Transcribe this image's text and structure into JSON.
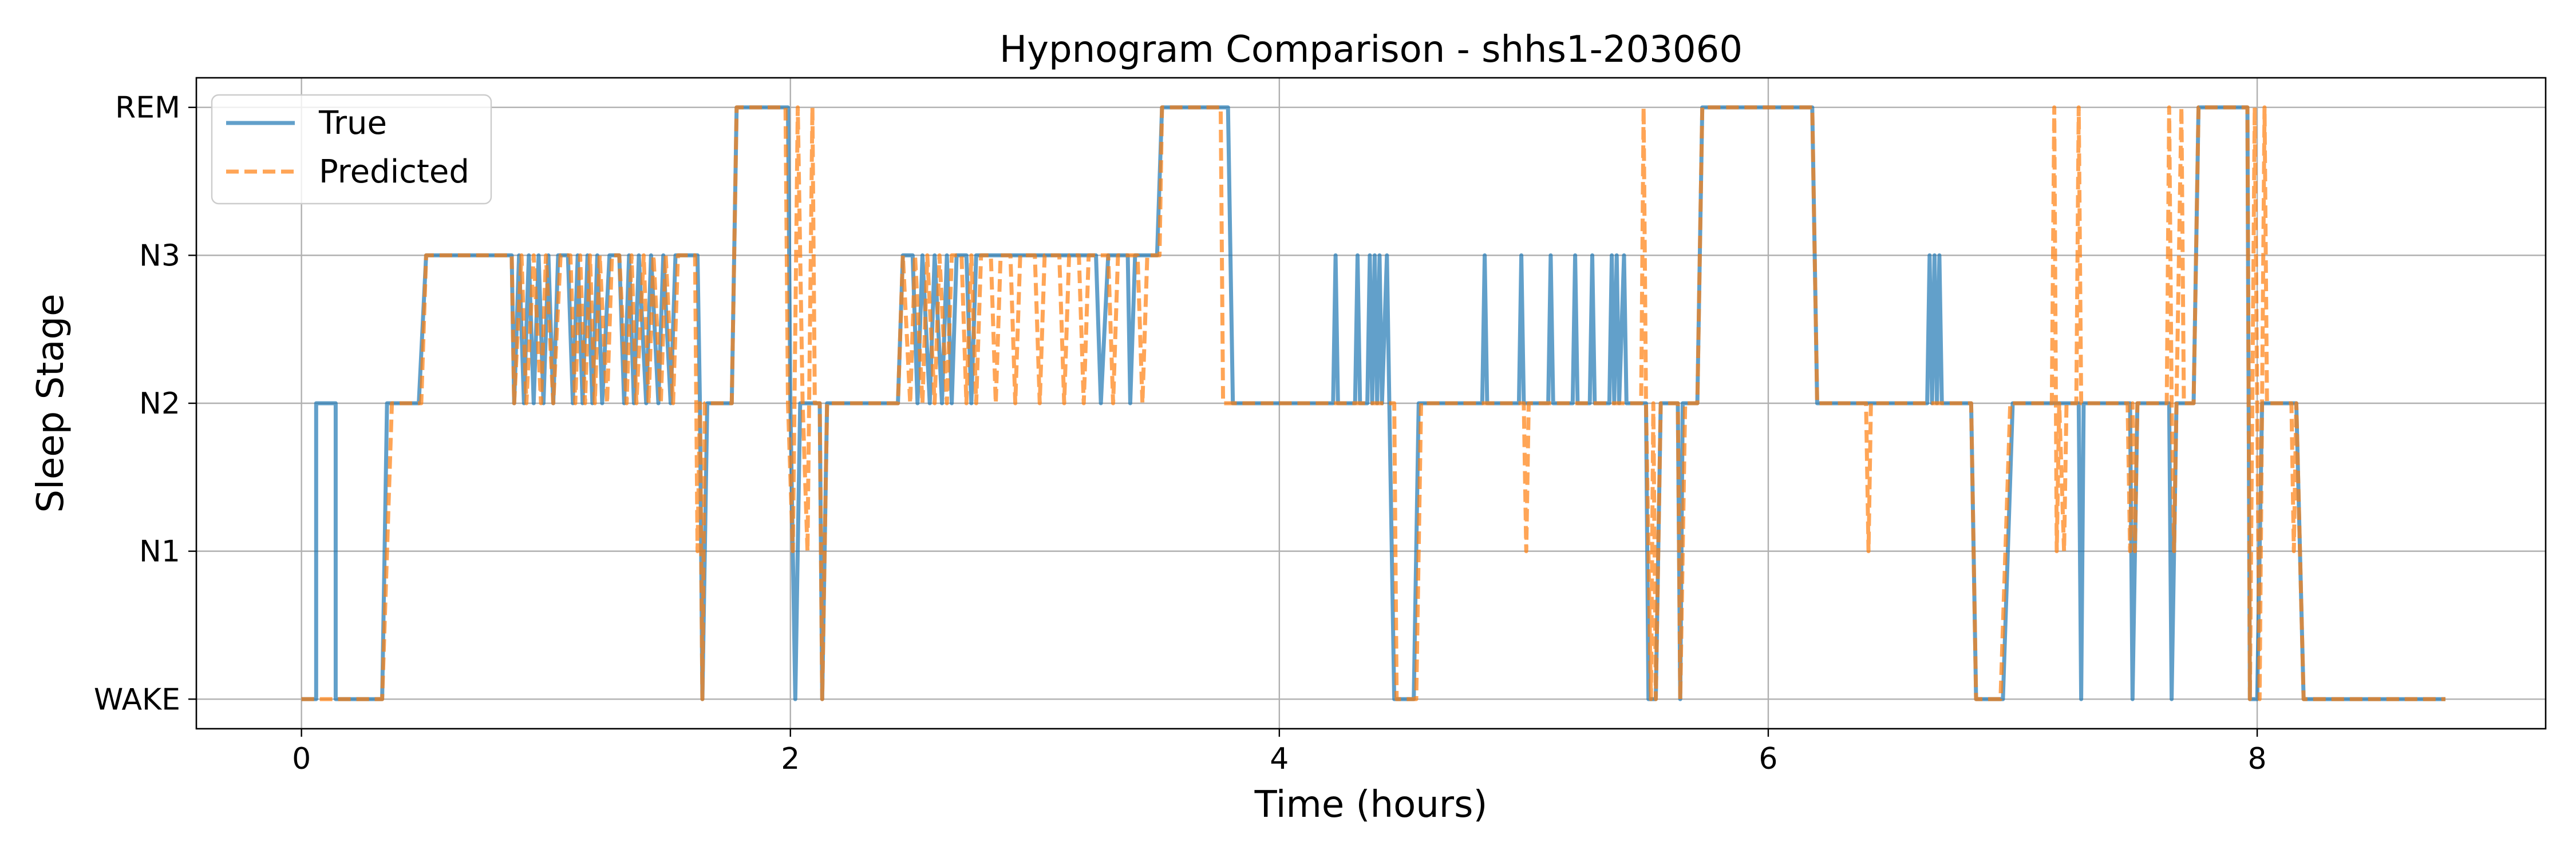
{
  "chart_data": {
    "type": "line",
    "title": "Hypnogram Comparison - shhs1-203060",
    "xlabel": "Time (hours)",
    "ylabel": "Sleep Stage",
    "xlim": [
      -0.43,
      9.18
    ],
    "ylim": [
      -0.2,
      4.2
    ],
    "x_ticks": [
      0,
      2,
      4,
      6,
      8
    ],
    "x_tick_labels": [
      "0",
      "2",
      "4",
      "6",
      "8"
    ],
    "y_ticks": [
      0,
      1,
      2,
      3,
      4
    ],
    "y_tick_labels": [
      "WAKE",
      "N1",
      "N2",
      "N3",
      "REM"
    ],
    "grid": true,
    "legend_position": "top-left",
    "series": [
      {
        "name": "True",
        "color": "#1f77b4",
        "style": "solid",
        "points": [
          [
            0.0,
            0
          ],
          [
            0.06,
            0
          ],
          [
            0.06,
            2
          ],
          [
            0.14,
            2
          ],
          [
            0.14,
            0
          ],
          [
            0.33,
            0
          ],
          [
            0.35,
            2
          ],
          [
            0.48,
            2
          ],
          [
            0.51,
            3
          ],
          [
            0.86,
            3
          ],
          [
            0.87,
            2
          ],
          [
            0.89,
            3
          ],
          [
            0.91,
            2
          ],
          [
            0.93,
            3
          ],
          [
            0.95,
            2
          ],
          [
            0.97,
            3
          ],
          [
            0.99,
            2
          ],
          [
            1.01,
            3
          ],
          [
            1.03,
            2
          ],
          [
            1.05,
            3
          ],
          [
            1.09,
            3
          ],
          [
            1.11,
            2
          ],
          [
            1.13,
            3
          ],
          [
            1.15,
            2
          ],
          [
            1.17,
            3
          ],
          [
            1.19,
            2
          ],
          [
            1.21,
            3
          ],
          [
            1.23,
            2
          ],
          [
            1.26,
            3
          ],
          [
            1.3,
            3
          ],
          [
            1.32,
            2
          ],
          [
            1.34,
            3
          ],
          [
            1.36,
            2
          ],
          [
            1.38,
            3
          ],
          [
            1.41,
            2
          ],
          [
            1.43,
            3
          ],
          [
            1.46,
            2
          ],
          [
            1.48,
            3
          ],
          [
            1.51,
            2
          ],
          [
            1.53,
            3
          ],
          [
            1.62,
            3
          ],
          [
            1.63,
            2
          ],
          [
            1.64,
            0
          ],
          [
            1.66,
            2
          ],
          [
            1.76,
            2
          ],
          [
            1.78,
            4
          ],
          [
            1.99,
            4
          ],
          [
            2.0,
            2
          ],
          [
            2.02,
            0
          ],
          [
            2.04,
            2
          ],
          [
            2.12,
            2
          ],
          [
            2.13,
            0
          ],
          [
            2.15,
            2
          ],
          [
            2.44,
            2
          ],
          [
            2.46,
            3
          ],
          [
            2.5,
            3
          ],
          [
            2.52,
            2
          ],
          [
            2.54,
            3
          ],
          [
            2.57,
            2
          ],
          [
            2.59,
            3
          ],
          [
            2.62,
            2
          ],
          [
            2.64,
            3
          ],
          [
            2.66,
            2
          ],
          [
            2.68,
            3
          ],
          [
            2.72,
            3
          ],
          [
            2.74,
            2
          ],
          [
            2.76,
            3
          ],
          [
            3.25,
            3
          ],
          [
            3.27,
            2
          ],
          [
            3.3,
            3
          ],
          [
            3.38,
            3
          ],
          [
            3.39,
            2
          ],
          [
            3.41,
            3
          ],
          [
            3.5,
            3
          ],
          [
            3.52,
            4
          ],
          [
            3.79,
            4
          ],
          [
            3.81,
            2
          ],
          [
            4.22,
            2
          ],
          [
            4.23,
            3
          ],
          [
            4.24,
            2
          ],
          [
            4.31,
            2
          ],
          [
            4.32,
            3
          ],
          [
            4.33,
            2
          ],
          [
            4.36,
            2
          ],
          [
            4.37,
            3
          ],
          [
            4.38,
            2
          ],
          [
            4.39,
            3
          ],
          [
            4.4,
            2
          ],
          [
            4.41,
            3
          ],
          [
            4.42,
            2
          ],
          [
            4.44,
            3
          ],
          [
            4.45,
            2
          ],
          [
            4.47,
            0
          ],
          [
            4.55,
            0
          ],
          [
            4.57,
            2
          ],
          [
            4.83,
            2
          ],
          [
            4.84,
            3
          ],
          [
            4.85,
            2
          ],
          [
            4.98,
            2
          ],
          [
            4.99,
            3
          ],
          [
            5.0,
            2
          ],
          [
            5.1,
            2
          ],
          [
            5.11,
            3
          ],
          [
            5.12,
            2
          ],
          [
            5.2,
            2
          ],
          [
            5.21,
            3
          ],
          [
            5.22,
            2
          ],
          [
            5.27,
            2
          ],
          [
            5.28,
            3
          ],
          [
            5.29,
            2
          ],
          [
            5.35,
            2
          ],
          [
            5.36,
            3
          ],
          [
            5.37,
            2
          ],
          [
            5.38,
            3
          ],
          [
            5.39,
            2
          ],
          [
            5.41,
            3
          ],
          [
            5.42,
            2
          ],
          [
            5.5,
            2
          ],
          [
            5.51,
            0
          ],
          [
            5.54,
            0
          ],
          [
            5.56,
            2
          ],
          [
            5.63,
            2
          ],
          [
            5.64,
            0
          ],
          [
            5.65,
            2
          ],
          [
            5.71,
            2
          ],
          [
            5.73,
            4
          ],
          [
            6.18,
            4
          ],
          [
            6.2,
            2
          ],
          [
            6.65,
            2
          ],
          [
            6.66,
            3
          ],
          [
            6.67,
            2
          ],
          [
            6.68,
            3
          ],
          [
            6.69,
            2
          ],
          [
            6.7,
            3
          ],
          [
            6.71,
            2
          ],
          [
            6.83,
            2
          ],
          [
            6.85,
            0
          ],
          [
            6.96,
            0
          ],
          [
            6.98,
            1
          ],
          [
            7.0,
            2
          ],
          [
            7.27,
            2
          ],
          [
            7.28,
            0
          ],
          [
            7.29,
            2
          ],
          [
            7.48,
            2
          ],
          [
            7.49,
            0
          ],
          [
            7.51,
            2
          ],
          [
            7.64,
            2
          ],
          [
            7.65,
            0
          ],
          [
            7.67,
            2
          ],
          [
            7.74,
            2
          ],
          [
            7.76,
            4
          ],
          [
            7.96,
            4
          ],
          [
            7.97,
            0
          ],
          [
            8.0,
            0
          ],
          [
            8.02,
            2
          ],
          [
            8.16,
            2
          ],
          [
            8.19,
            0
          ],
          [
            8.77,
            0
          ]
        ]
      },
      {
        "name": "Predicted",
        "color": "#ff7f0e",
        "style": "dashed",
        "points": [
          [
            0.0,
            0
          ],
          [
            0.33,
            0
          ],
          [
            0.35,
            1
          ],
          [
            0.37,
            2
          ],
          [
            0.49,
            2
          ],
          [
            0.51,
            3
          ],
          [
            0.86,
            3
          ],
          [
            0.87,
            2
          ],
          [
            0.9,
            3
          ],
          [
            0.92,
            2
          ],
          [
            0.95,
            3
          ],
          [
            0.98,
            2
          ],
          [
            1.0,
            3
          ],
          [
            1.03,
            2
          ],
          [
            1.06,
            3
          ],
          [
            1.1,
            3
          ],
          [
            1.12,
            2
          ],
          [
            1.14,
            3
          ],
          [
            1.16,
            2
          ],
          [
            1.18,
            3
          ],
          [
            1.2,
            2
          ],
          [
            1.22,
            3
          ],
          [
            1.25,
            2
          ],
          [
            1.27,
            3
          ],
          [
            1.3,
            3
          ],
          [
            1.33,
            2
          ],
          [
            1.35,
            3
          ],
          [
            1.37,
            2
          ],
          [
            1.4,
            3
          ],
          [
            1.42,
            2
          ],
          [
            1.44,
            3
          ],
          [
            1.47,
            2
          ],
          [
            1.49,
            3
          ],
          [
            1.52,
            2
          ],
          [
            1.54,
            3
          ],
          [
            1.61,
            3
          ],
          [
            1.62,
            1
          ],
          [
            1.63,
            2
          ],
          [
            1.64,
            0
          ],
          [
            1.65,
            2
          ],
          [
            1.76,
            2
          ],
          [
            1.78,
            4
          ],
          [
            1.98,
            4
          ],
          [
            1.99,
            2
          ],
          [
            2.01,
            1
          ],
          [
            2.03,
            4
          ],
          [
            2.05,
            2
          ],
          [
            2.07,
            1
          ],
          [
            2.09,
            4
          ],
          [
            2.1,
            2
          ],
          [
            2.12,
            2
          ],
          [
            2.13,
            0
          ],
          [
            2.15,
            2
          ],
          [
            2.44,
            2
          ],
          [
            2.46,
            3
          ],
          [
            2.49,
            2
          ],
          [
            2.51,
            3
          ],
          [
            2.54,
            2
          ],
          [
            2.56,
            3
          ],
          [
            2.59,
            2
          ],
          [
            2.61,
            3
          ],
          [
            2.64,
            2
          ],
          [
            2.66,
            3
          ],
          [
            2.7,
            3
          ],
          [
            2.72,
            2
          ],
          [
            2.74,
            3
          ],
          [
            2.76,
            2
          ],
          [
            2.78,
            3
          ],
          [
            2.82,
            3
          ],
          [
            2.84,
            2
          ],
          [
            2.86,
            3
          ],
          [
            2.9,
            3
          ],
          [
            2.92,
            2
          ],
          [
            2.94,
            3
          ],
          [
            3.0,
            3
          ],
          [
            3.02,
            2
          ],
          [
            3.04,
            3
          ],
          [
            3.1,
            3
          ],
          [
            3.12,
            2
          ],
          [
            3.14,
            3
          ],
          [
            3.18,
            3
          ],
          [
            3.2,
            2
          ],
          [
            3.22,
            3
          ],
          [
            3.3,
            3
          ],
          [
            3.32,
            2
          ],
          [
            3.34,
            3
          ],
          [
            3.42,
            3
          ],
          [
            3.44,
            2
          ],
          [
            3.46,
            3
          ],
          [
            3.51,
            3
          ],
          [
            3.52,
            4
          ],
          [
            3.76,
            4
          ],
          [
            3.77,
            2
          ],
          [
            4.47,
            2
          ],
          [
            4.48,
            0
          ],
          [
            4.56,
            0
          ],
          [
            4.58,
            2
          ],
          [
            5.0,
            2
          ],
          [
            5.01,
            1
          ],
          [
            5.02,
            2
          ],
          [
            5.48,
            2
          ],
          [
            5.49,
            4
          ],
          [
            5.5,
            2
          ],
          [
            5.51,
            1
          ],
          [
            5.52,
            0
          ],
          [
            5.53,
            2
          ],
          [
            5.54,
            0
          ],
          [
            5.56,
            2
          ],
          [
            5.63,
            2
          ],
          [
            5.64,
            0
          ],
          [
            5.66,
            2
          ],
          [
            5.71,
            2
          ],
          [
            5.73,
            4
          ],
          [
            6.18,
            4
          ],
          [
            6.2,
            2
          ],
          [
            6.4,
            2
          ],
          [
            6.41,
            1
          ],
          [
            6.42,
            2
          ],
          [
            6.83,
            2
          ],
          [
            6.85,
            0
          ],
          [
            6.95,
            0
          ],
          [
            6.97,
            1
          ],
          [
            6.99,
            2
          ],
          [
            7.16,
            2
          ],
          [
            7.17,
            4
          ],
          [
            7.18,
            1
          ],
          [
            7.19,
            2
          ],
          [
            7.21,
            1
          ],
          [
            7.22,
            2
          ],
          [
            7.26,
            2
          ],
          [
            7.27,
            4
          ],
          [
            7.28,
            2
          ],
          [
            7.47,
            2
          ],
          [
            7.48,
            1
          ],
          [
            7.49,
            2
          ],
          [
            7.5,
            1
          ],
          [
            7.51,
            2
          ],
          [
            7.63,
            2
          ],
          [
            7.64,
            4
          ],
          [
            7.65,
            2
          ],
          [
            7.66,
            1
          ],
          [
            7.67,
            2
          ],
          [
            7.69,
            4
          ],
          [
            7.7,
            2
          ],
          [
            7.74,
            2
          ],
          [
            7.76,
            4
          ],
          [
            7.96,
            4
          ],
          [
            7.97,
            0
          ],
          [
            7.99,
            4
          ],
          [
            8.0,
            2
          ],
          [
            8.01,
            0
          ],
          [
            8.03,
            4
          ],
          [
            8.04,
            2
          ],
          [
            8.14,
            2
          ],
          [
            8.15,
            1
          ],
          [
            8.16,
            2
          ],
          [
            8.19,
            0
          ],
          [
            8.77,
            0
          ]
        ]
      }
    ]
  }
}
